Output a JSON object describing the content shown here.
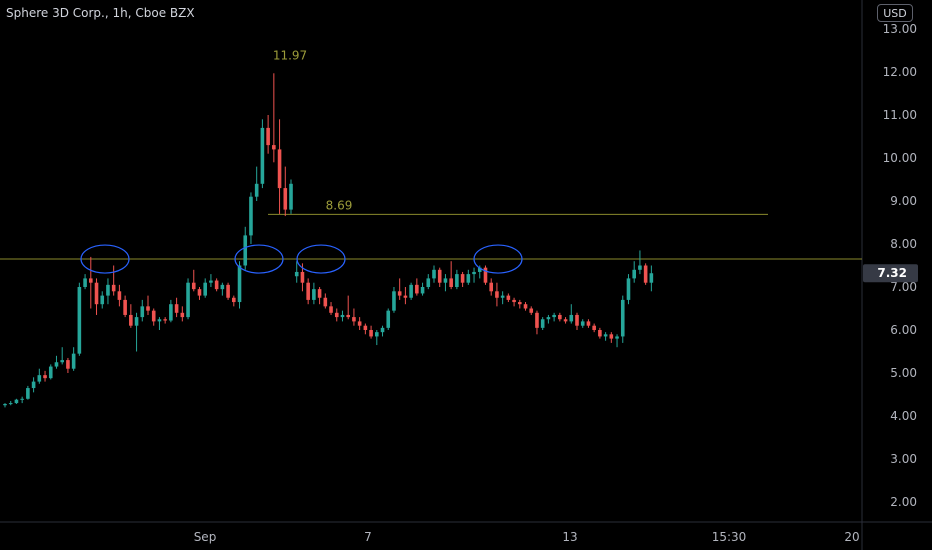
{
  "header": {
    "title": "Sphere 3D Corp., 1h, Cboe BZX"
  },
  "currency_button": "USD",
  "last_price_label": "7.32",
  "colors": {
    "up": "#26a69a",
    "down": "#ef5350",
    "level_line": "#8a8a2c",
    "circle": "#2962ff",
    "annotation": "#9c9c3a",
    "price_badge": "#363a45"
  },
  "chart_data": {
    "type": "candlestick",
    "title": "Sphere 3D Corp., 1h, Cboe BZX",
    "y_ticks": [
      "2.00",
      "3.00",
      "4.00",
      "5.00",
      "6.00",
      "7.00",
      "8.00",
      "9.00",
      "10.00",
      "11.00",
      "12.00",
      "13.00"
    ],
    "x_ticks": [
      "Sep",
      "7",
      "13",
      "15:30",
      "20"
    ],
    "ylim": [
      1.6,
      13.3
    ],
    "annotations": [
      {
        "text": "11.97",
        "value": 11.97
      },
      {
        "text": "8.69",
        "value": 8.69
      }
    ],
    "horizontal_lines": [
      7.65,
      8.69
    ],
    "resistance_circles_at": 7.65,
    "candles": [
      [
        4.25,
        4.3,
        4.2,
        4.28
      ],
      [
        4.28,
        4.35,
        4.25,
        4.3
      ],
      [
        4.3,
        4.4,
        4.28,
        4.38
      ],
      [
        4.38,
        4.45,
        4.3,
        4.4
      ],
      [
        4.4,
        4.7,
        4.38,
        4.65
      ],
      [
        4.65,
        4.9,
        4.55,
        4.8
      ],
      [
        4.8,
        5.1,
        4.75,
        4.95
      ],
      [
        4.95,
        5.05,
        4.8,
        4.88
      ],
      [
        4.88,
        5.2,
        4.85,
        5.15
      ],
      [
        5.15,
        5.4,
        5.1,
        5.25
      ],
      [
        5.25,
        5.6,
        5.2,
        5.3
      ],
      [
        5.3,
        5.35,
        5.0,
        5.1
      ],
      [
        5.1,
        5.6,
        5.05,
        5.45
      ],
      [
        5.45,
        7.1,
        5.4,
        7.0
      ],
      [
        7.0,
        7.3,
        6.95,
        7.2
      ],
      [
        7.2,
        7.7,
        6.5,
        7.1
      ],
      [
        7.1,
        7.2,
        6.35,
        6.6
      ],
      [
        6.6,
        6.9,
        6.5,
        6.8
      ],
      [
        6.8,
        7.2,
        6.6,
        7.05
      ],
      [
        7.05,
        7.5,
        6.8,
        6.9
      ],
      [
        6.9,
        7.05,
        6.55,
        6.7
      ],
      [
        6.7,
        6.8,
        6.3,
        6.35
      ],
      [
        6.35,
        6.6,
        6.05,
        6.1
      ],
      [
        6.1,
        6.4,
        5.5,
        6.3
      ],
      [
        6.3,
        6.7,
        6.2,
        6.55
      ],
      [
        6.55,
        6.8,
        6.35,
        6.45
      ],
      [
        6.45,
        6.5,
        6.1,
        6.2
      ],
      [
        6.2,
        6.3,
        6.0,
        6.25
      ],
      [
        6.25,
        6.3,
        6.15,
        6.22
      ],
      [
        6.22,
        6.7,
        6.18,
        6.6
      ],
      [
        6.6,
        6.75,
        6.3,
        6.4
      ],
      [
        6.4,
        6.55,
        6.2,
        6.3
      ],
      [
        6.3,
        7.2,
        6.25,
        7.1
      ],
      [
        7.1,
        7.4,
        6.9,
        6.95
      ],
      [
        6.95,
        7.0,
        6.7,
        6.8
      ],
      [
        6.8,
        7.2,
        6.75,
        7.1
      ],
      [
        7.1,
        7.3,
        7.0,
        7.15
      ],
      [
        7.15,
        7.2,
        6.9,
        6.95
      ],
      [
        6.95,
        7.1,
        6.8,
        7.05
      ],
      [
        7.05,
        7.1,
        6.7,
        6.75
      ],
      [
        6.75,
        6.8,
        6.55,
        6.65
      ],
      [
        6.65,
        7.6,
        6.5,
        7.5
      ],
      [
        7.5,
        8.4,
        7.4,
        8.2
      ],
      [
        8.2,
        9.2,
        8.0,
        9.1
      ],
      [
        9.1,
        9.8,
        9.0,
        9.4
      ],
      [
        9.4,
        10.9,
        9.3,
        10.7
      ],
      [
        10.7,
        11.0,
        10.1,
        10.3
      ],
      [
        10.3,
        11.97,
        9.9,
        10.2
      ],
      [
        10.2,
        10.9,
        8.7,
        9.3
      ],
      [
        9.3,
        9.8,
        8.65,
        8.8
      ],
      [
        8.8,
        9.5,
        8.7,
        9.4
      ],
      [
        7.25,
        7.6,
        7.1,
        7.35
      ],
      [
        7.35,
        7.55,
        6.9,
        7.1
      ],
      [
        7.1,
        7.2,
        6.6,
        6.7
      ],
      [
        6.7,
        7.1,
        6.6,
        6.95
      ],
      [
        6.95,
        7.0,
        6.6,
        6.75
      ],
      [
        6.75,
        6.85,
        6.5,
        6.55
      ],
      [
        6.55,
        6.65,
        6.35,
        6.4
      ],
      [
        6.4,
        6.5,
        6.2,
        6.3
      ],
      [
        6.3,
        6.45,
        6.2,
        6.35
      ],
      [
        6.35,
        6.8,
        6.25,
        6.3
      ],
      [
        6.3,
        6.5,
        6.1,
        6.2
      ],
      [
        6.2,
        6.3,
        6.0,
        6.1
      ],
      [
        6.1,
        6.15,
        5.9,
        6.0
      ],
      [
        6.0,
        6.1,
        5.8,
        5.85
      ],
      [
        5.85,
        6.0,
        5.65,
        5.95
      ],
      [
        5.95,
        6.1,
        5.85,
        6.05
      ],
      [
        6.05,
        6.5,
        6.0,
        6.45
      ],
      [
        6.45,
        7.0,
        6.4,
        6.9
      ],
      [
        6.9,
        7.2,
        6.7,
        6.8
      ],
      [
        6.8,
        7.0,
        6.6,
        6.75
      ],
      [
        6.75,
        7.1,
        6.7,
        7.05
      ],
      [
        7.05,
        7.2,
        6.8,
        6.85
      ],
      [
        6.85,
        7.1,
        6.8,
        7.0
      ],
      [
        7.0,
        7.3,
        6.95,
        7.2
      ],
      [
        7.2,
        7.5,
        7.1,
        7.4
      ],
      [
        7.4,
        7.45,
        7.0,
        7.1
      ],
      [
        7.1,
        7.3,
        6.9,
        7.2
      ],
      [
        7.2,
        7.6,
        6.95,
        7.0
      ],
      [
        7.0,
        7.4,
        6.95,
        7.3
      ],
      [
        7.3,
        7.35,
        7.0,
        7.1
      ],
      [
        7.1,
        7.4,
        7.05,
        7.3
      ],
      [
        7.3,
        7.45,
        7.1,
        7.35
      ],
      [
        7.35,
        7.5,
        7.2,
        7.45
      ],
      [
        7.45,
        7.5,
        7.05,
        7.1
      ],
      [
        7.1,
        7.2,
        6.8,
        6.9
      ],
      [
        6.9,
        7.1,
        6.55,
        6.75
      ],
      [
        6.75,
        6.9,
        6.6,
        6.8
      ],
      [
        6.8,
        6.85,
        6.65,
        6.7
      ],
      [
        6.7,
        6.75,
        6.55,
        6.65
      ],
      [
        6.65,
        6.7,
        6.5,
        6.6
      ],
      [
        6.6,
        6.65,
        6.45,
        6.5
      ],
      [
        6.5,
        6.55,
        6.35,
        6.4
      ],
      [
        6.4,
        6.45,
        5.9,
        6.05
      ],
      [
        6.05,
        6.3,
        6.0,
        6.25
      ],
      [
        6.25,
        6.35,
        6.15,
        6.3
      ],
      [
        6.3,
        6.4,
        6.2,
        6.35
      ],
      [
        6.35,
        6.4,
        6.2,
        6.25
      ],
      [
        6.25,
        6.3,
        6.15,
        6.2
      ],
      [
        6.2,
        6.6,
        6.15,
        6.35
      ],
      [
        6.35,
        6.4,
        6.0,
        6.1
      ],
      [
        6.1,
        6.25,
        6.05,
        6.2
      ],
      [
        6.2,
        6.25,
        6.05,
        6.1
      ],
      [
        6.1,
        6.15,
        5.95,
        6.0
      ],
      [
        6.0,
        6.05,
        5.8,
        5.85
      ],
      [
        5.85,
        5.95,
        5.75,
        5.9
      ],
      [
        5.9,
        5.95,
        5.7,
        5.8
      ],
      [
        5.8,
        5.9,
        5.6,
        5.85
      ],
      [
        5.85,
        6.8,
        5.7,
        6.7
      ],
      [
        6.7,
        7.3,
        6.6,
        7.2
      ],
      [
        7.2,
        7.6,
        7.1,
        7.4
      ],
      [
        7.4,
        7.85,
        7.3,
        7.5
      ],
      [
        7.5,
        7.55,
        7.05,
        7.1
      ],
      [
        7.1,
        7.5,
        6.9,
        7.32
      ]
    ]
  }
}
